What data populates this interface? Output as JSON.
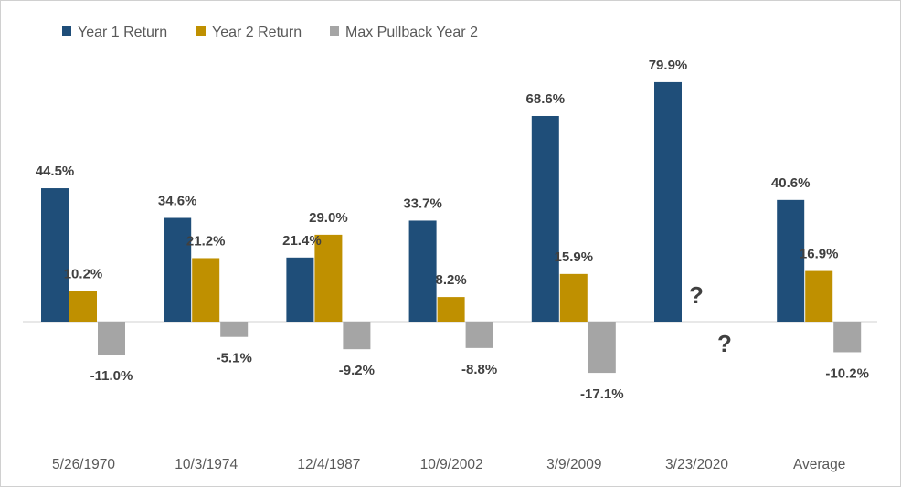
{
  "chart_data": {
    "type": "bar",
    "title": "",
    "xlabel": "",
    "ylabel": "",
    "ylim": [
      -25,
      85
    ],
    "grid": false,
    "legend_position": "top-left",
    "categories": [
      "5/26/1970",
      "10/3/1974",
      "12/4/1987",
      "10/9/2002",
      "3/9/2009",
      "3/23/2020",
      "Average"
    ],
    "series": [
      {
        "name": "Year 1 Return",
        "color": "#1F4E79",
        "values": [
          44.5,
          34.6,
          21.4,
          33.7,
          68.6,
          79.9,
          40.6
        ],
        "labels": [
          "44.5%",
          "34.6%",
          "21.4%",
          "33.7%",
          "68.6%",
          "79.9%",
          "40.6%"
        ]
      },
      {
        "name": "Year 2 Return",
        "color": "#BF9000",
        "values": [
          10.2,
          21.2,
          29.0,
          8.2,
          15.9,
          null,
          16.9
        ],
        "labels": [
          "10.2%",
          "21.2%",
          "29.0%",
          "8.2%",
          "15.9%",
          "?",
          "16.9%"
        ]
      },
      {
        "name": "Max Pullback Year 2",
        "color": "#A5A5A5",
        "values": [
          -11.0,
          -5.1,
          -9.2,
          -8.8,
          -17.1,
          null,
          -10.2
        ],
        "labels": [
          "-11.0%",
          "-5.1%",
          "-9.2%",
          "-8.8%",
          "-17.1%",
          "?",
          "-10.2%"
        ]
      }
    ]
  }
}
